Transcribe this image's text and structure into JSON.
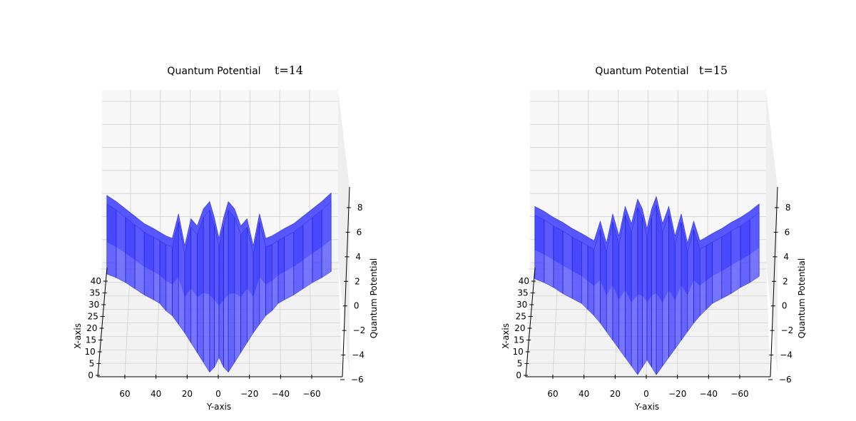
{
  "chart_data": [
    {
      "type": "surface3d",
      "title": "Quantum Potential",
      "time_label": "t=14",
      "xlabel": "Y-axis",
      "ylabel": "X-axis",
      "zlabel": "Quantum Potential",
      "y_ticks": [
        "60",
        "40",
        "20",
        "0",
        "−20",
        "−40",
        "−60"
      ],
      "x_ticks": [
        "0",
        "5",
        "10",
        "15",
        "20",
        "25",
        "30",
        "35",
        "40"
      ],
      "z_ticks": [
        "−6",
        "−4",
        "−2",
        "0",
        "2",
        "4",
        "6",
        "8"
      ],
      "zlim": [
        -6,
        9
      ],
      "surface_color": "#3b3bff",
      "profile": {
        "y": [
          72,
          66,
          60,
          54,
          48,
          42,
          38,
          34,
          30,
          26,
          22,
          18,
          14,
          10,
          6,
          3,
          0,
          -3,
          -6,
          -10,
          -14,
          -18,
          -22,
          -26,
          -30,
          -34,
          -38,
          -42,
          -48,
          -54,
          -60,
          -66,
          -72
        ],
        "high": [
          8.3,
          7.8,
          7.2,
          6.6,
          6.0,
          5.6,
          5.3,
          5.0,
          4.8,
          6.8,
          4.2,
          6.4,
          5.8,
          7.2,
          7.8,
          6.5,
          4.8,
          6.5,
          7.8,
          7.2,
          5.8,
          6.4,
          4.2,
          6.8,
          4.8,
          5.0,
          5.3,
          5.6,
          6.0,
          6.6,
          7.2,
          7.8,
          8.5
        ],
        "low": [
          2.6,
          2.3,
          1.9,
          1.4,
          0.9,
          0.5,
          0.2,
          -0.4,
          -0.8,
          -1.5,
          -2.2,
          -3.0,
          -3.8,
          -4.6,
          -5.4,
          -5.0,
          -4.2,
          -5.0,
          -5.4,
          -4.6,
          -3.8,
          -3.0,
          -2.2,
          -1.5,
          -0.8,
          -0.4,
          0.2,
          0.5,
          0.9,
          1.4,
          1.9,
          2.3,
          2.8
        ]
      }
    },
    {
      "type": "surface3d",
      "title": "Quantum Potential",
      "time_label": "t=15",
      "xlabel": "Y-axis",
      "ylabel": "X-axis",
      "zlabel": "Quantum Potential",
      "y_ticks": [
        "60",
        "40",
        "20",
        "0",
        "−20",
        "−40",
        "−60"
      ],
      "x_ticks": [
        "0",
        "5",
        "10",
        "15",
        "20",
        "25",
        "30",
        "35",
        "40"
      ],
      "z_ticks": [
        "−6",
        "−4",
        "−2",
        "0",
        "2",
        "4",
        "6",
        "8"
      ],
      "zlim": [
        -6,
        9
      ],
      "surface_color": "#3b3bff",
      "profile": {
        "y": [
          72,
          66,
          60,
          54,
          48,
          42,
          38,
          34,
          30,
          26,
          22,
          18,
          14,
          10,
          6,
          3,
          0,
          -3,
          -6,
          -10,
          -14,
          -18,
          -22,
          -26,
          -30,
          -34,
          -38,
          -42,
          -48,
          -54,
          -60,
          -66,
          -72
        ],
        "high": [
          7.4,
          7.0,
          6.5,
          6.1,
          5.6,
          5.2,
          4.9,
          4.6,
          6.2,
          4.4,
          6.8,
          5.0,
          7.4,
          6.0,
          8.0,
          7.2,
          5.6,
          7.2,
          8.2,
          6.0,
          7.4,
          5.0,
          6.8,
          4.4,
          6.2,
          4.6,
          4.9,
          5.2,
          5.6,
          6.1,
          6.5,
          7.0,
          7.6
        ],
        "low": [
          2.2,
          1.9,
          1.5,
          1.0,
          0.6,
          0.2,
          -0.3,
          -0.8,
          -1.4,
          -2.1,
          -2.8,
          -3.5,
          -4.2,
          -4.9,
          -5.6,
          -5.0,
          -4.4,
          -5.0,
          -5.6,
          -4.9,
          -4.2,
          -3.5,
          -2.8,
          -2.1,
          -1.4,
          -0.8,
          -0.3,
          0.2,
          0.6,
          1.0,
          1.5,
          1.9,
          2.4
        ]
      }
    }
  ]
}
